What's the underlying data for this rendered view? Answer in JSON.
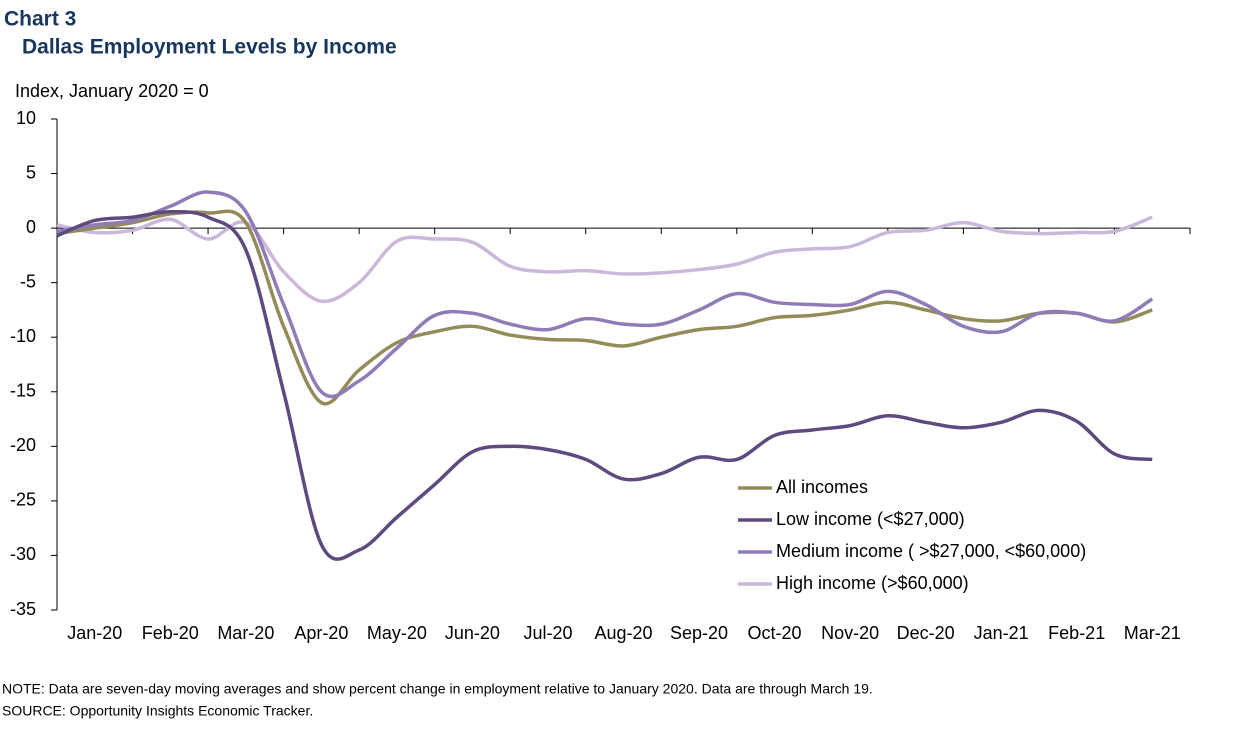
{
  "chart_data": {
    "type": "line",
    "title": "Chart 3",
    "subtitle": "Dallas Employment  Levels by Income",
    "y_label": "Index, January 2020 = 0",
    "note": "NOTE:  Data are seven-day moving averages and show percent change in employment  relative to January 2020. Data are through March 19.",
    "source": "SOURCE:  Opportunity Insights Economic Tracker.",
    "categories": [
      null,
      "Jan-20",
      null,
      "Feb-20",
      null,
      "Mar-20",
      null,
      "Apr-20",
      null,
      "May-20",
      null,
      "Jun-20",
      null,
      "Jul-20",
      null,
      "Aug-20",
      null,
      "Sep-20",
      null,
      "Oct-20",
      null,
      "Nov-20",
      null,
      "Dec-20",
      null,
      "Jan-21",
      null,
      "Feb-21",
      null,
      "Mar-21"
    ],
    "ylim": [
      -35,
      10
    ],
    "yticks": [
      10,
      5,
      0,
      -5,
      -10,
      -15,
      -20,
      -25,
      -30,
      -35
    ],
    "legend": "lower right",
    "series": [
      {
        "name": "All incomes",
        "color": "#938b58",
        "values": [
          -0.5,
          0,
          0.5,
          1.3,
          1.4,
          0.5,
          -9,
          -16,
          -13,
          -10.5,
          -9.5,
          -9,
          -9.8,
          -10.2,
          -10.3,
          -10.8,
          -10,
          -9.3,
          -9,
          -8.2,
          -8,
          -7.5,
          -6.8,
          -7.5,
          -8.3,
          -8.5,
          -7.8,
          -7.8,
          -8.6,
          -7.5
        ]
      },
      {
        "name": "Low income (<$27,000)",
        "color": "#5e4a7e",
        "values": [
          -0.7,
          0.7,
          1.0,
          1.5,
          1.0,
          -2.0,
          -15,
          -29,
          -29.5,
          -26.5,
          -23.5,
          -20.5,
          -20,
          -20.3,
          -21.2,
          -23,
          -22.5,
          -21,
          -21.2,
          -19,
          -18.5,
          -18.1,
          -17.2,
          -17.8,
          -18.3,
          -17.8,
          -16.7,
          -17.7,
          -20.7,
          -21.2
        ]
      },
      {
        "name": "Medium income ( >$27,000, <$60,000)",
        "color": "#8f7cb7",
        "values": [
          -0.3,
          0.3,
          0.7,
          2.0,
          3.3,
          1.5,
          -7,
          -15,
          -14,
          -11,
          -8,
          -7.8,
          -8.8,
          -9.3,
          -8.3,
          -8.8,
          -8.8,
          -7.5,
          -6,
          -6.8,
          -7,
          -7,
          -5.8,
          -7,
          -9,
          -9.5,
          -7.8,
          -7.8,
          -8.5,
          -6.5
        ]
      },
      {
        "name": "High income (>$60,000)",
        "color": "#cbb7d9",
        "values": [
          0.3,
          -0.4,
          -0.2,
          0.8,
          -1.0,
          0.5,
          -4,
          -6.7,
          -5,
          -1.2,
          -1.0,
          -1.3,
          -3.5,
          -4.0,
          -3.9,
          -4.2,
          -4.1,
          -3.8,
          -3.3,
          -2.2,
          -1.9,
          -1.7,
          -0.4,
          -0.2,
          0.5,
          -0.3,
          -0.5,
          -0.4,
          -0.3,
          1.0
        ]
      }
    ]
  }
}
